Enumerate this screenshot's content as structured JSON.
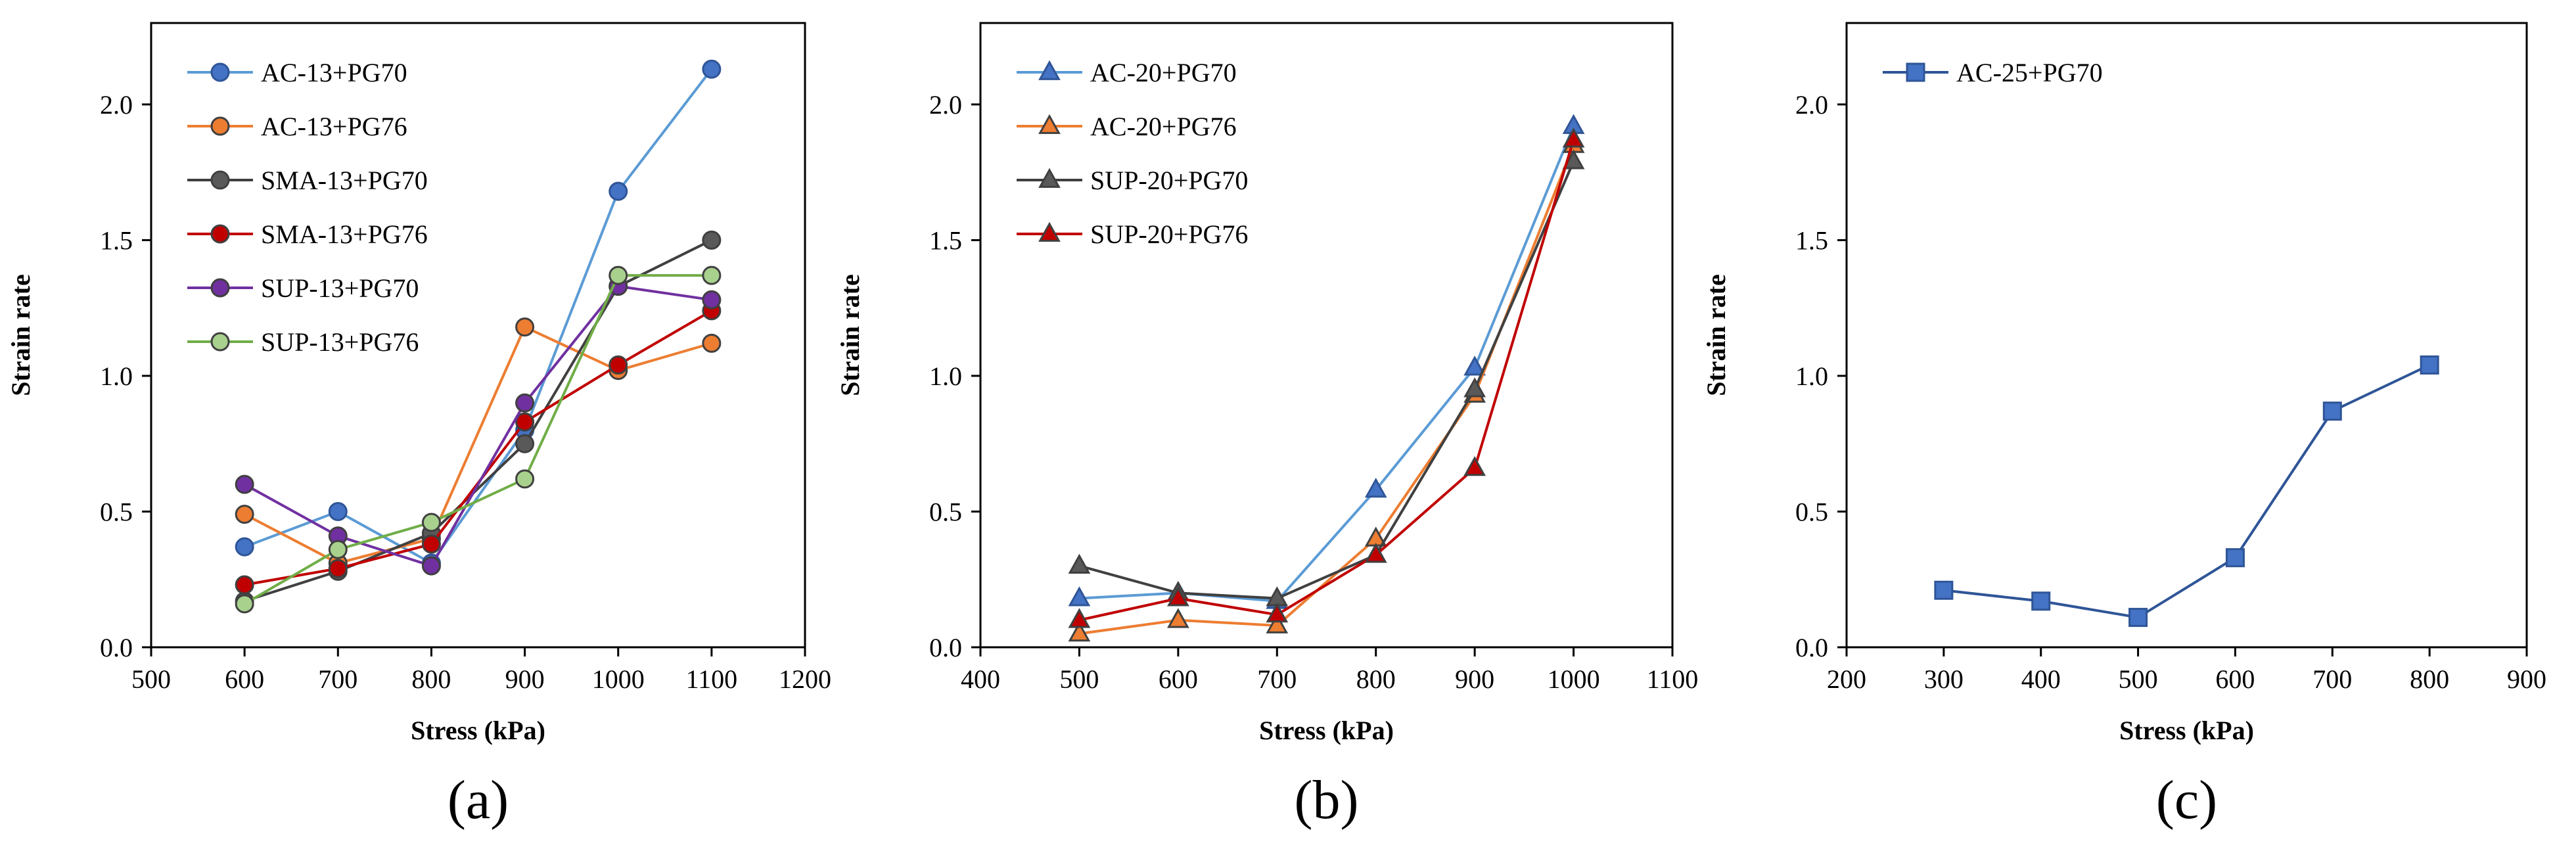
{
  "chart_data": [
    {
      "type": "line",
      "panel_label": "(a)",
      "xlabel": "Stress (kPa)",
      "ylabel": "Strain rate",
      "xlim": [
        500,
        1200
      ],
      "ylim": [
        0.0,
        2.3
      ],
      "xticks": [
        "500",
        "600",
        "700",
        "800",
        "900",
        "1000",
        "1100",
        "1200"
      ],
      "yticks": [
        "0.0",
        "0.5",
        "1.0",
        "1.5",
        "2.0"
      ],
      "grid": false,
      "legend_position": "top-left",
      "series": [
        {
          "name": "AC-13+PG70",
          "marker": "circle",
          "color": "#5B9BD5",
          "fill": "#4472C4",
          "x": [
            600,
            700,
            800,
            900,
            1000,
            1100
          ],
          "y": [
            0.37,
            0.5,
            0.31,
            0.8,
            1.68,
            2.13
          ]
        },
        {
          "name": "AC-13+PG76",
          "marker": "circle",
          "color": "#ED7D31",
          "fill": "#ED7D31",
          "x": [
            600,
            700,
            800,
            900,
            1000,
            1100
          ],
          "y": [
            0.49,
            0.31,
            0.4,
            1.18,
            1.02,
            1.12
          ]
        },
        {
          "name": "SMA-13+PG70",
          "marker": "circle",
          "color": "#404040",
          "fill": "#595959",
          "x": [
            600,
            700,
            800,
            900,
            1000,
            1100
          ],
          "y": [
            0.17,
            0.28,
            0.42,
            0.75,
            1.33,
            1.5
          ]
        },
        {
          "name": "SMA-13+PG76",
          "marker": "circle",
          "color": "#C00000",
          "fill": "#C00000",
          "x": [
            600,
            700,
            800,
            900,
            1000,
            1100
          ],
          "y": [
            0.23,
            0.29,
            0.38,
            0.83,
            1.04,
            1.24
          ]
        },
        {
          "name": "SUP-13+PG70",
          "marker": "circle",
          "color": "#7030A0",
          "fill": "#7030A0",
          "x": [
            600,
            700,
            800,
            900,
            1000,
            1100
          ],
          "y": [
            0.6,
            0.41,
            0.3,
            0.9,
            1.33,
            1.28
          ]
        },
        {
          "name": "SUP-13+PG76",
          "marker": "circle",
          "color": "#70AD47",
          "fill": "#A9D18E",
          "x": [
            600,
            700,
            800,
            900,
            1000,
            1100
          ],
          "y": [
            0.16,
            0.36,
            0.46,
            0.62,
            1.37,
            1.37
          ]
        }
      ]
    },
    {
      "type": "line",
      "panel_label": "(b)",
      "xlabel": "Stress (kPa)",
      "ylabel": "Strain rate",
      "xlim": [
        400,
        1100
      ],
      "ylim": [
        0.0,
        2.3
      ],
      "xticks": [
        "400",
        "500",
        "600",
        "700",
        "800",
        "900",
        "1000",
        "1100"
      ],
      "yticks": [
        "0.0",
        "0.5",
        "1.0",
        "1.5",
        "2.0"
      ],
      "grid": false,
      "legend_position": "top-left",
      "series": [
        {
          "name": "AC-20+PG70",
          "marker": "triangle",
          "color": "#5B9BD5",
          "fill": "#4472C4",
          "x": [
            500,
            600,
            700,
            800,
            900,
            1000
          ],
          "y": [
            0.18,
            0.2,
            0.17,
            0.58,
            1.03,
            1.92
          ]
        },
        {
          "name": "AC-20+PG76",
          "marker": "triangle",
          "color": "#ED7D31",
          "fill": "#ED7D31",
          "x": [
            500,
            600,
            700,
            800,
            900,
            1000
          ],
          "y": [
            0.05,
            0.1,
            0.08,
            0.4,
            0.93,
            1.85
          ]
        },
        {
          "name": "SUP-20+PG70",
          "marker": "triangle",
          "color": "#404040",
          "fill": "#595959",
          "x": [
            500,
            600,
            700,
            800,
            900,
            1000
          ],
          "y": [
            0.3,
            0.2,
            0.18,
            0.34,
            0.95,
            1.79
          ]
        },
        {
          "name": "SUP-20+PG76",
          "marker": "triangle",
          "color": "#C00000",
          "fill": "#C00000",
          "x": [
            500,
            600,
            700,
            800,
            900,
            1000
          ],
          "y": [
            0.1,
            0.18,
            0.12,
            0.34,
            0.66,
            1.87
          ]
        }
      ]
    },
    {
      "type": "line",
      "panel_label": "(c)",
      "xlabel": "Stress (kPa)",
      "ylabel": "Strain rate",
      "xlim": [
        200,
        900
      ],
      "ylim": [
        0.0,
        2.3
      ],
      "xticks": [
        "200",
        "300",
        "400",
        "500",
        "600",
        "700",
        "800",
        "900"
      ],
      "yticks": [
        "0.0",
        "0.5",
        "1.0",
        "1.5",
        "2.0"
      ],
      "grid": false,
      "legend_position": "top-left",
      "series": [
        {
          "name": "AC-25+PG70",
          "marker": "square",
          "color": "#2F5597",
          "fill": "#4472C4",
          "x": [
            300,
            400,
            500,
            600,
            700,
            800
          ],
          "y": [
            0.21,
            0.17,
            0.11,
            0.33,
            0.87,
            1.04
          ]
        }
      ]
    }
  ]
}
